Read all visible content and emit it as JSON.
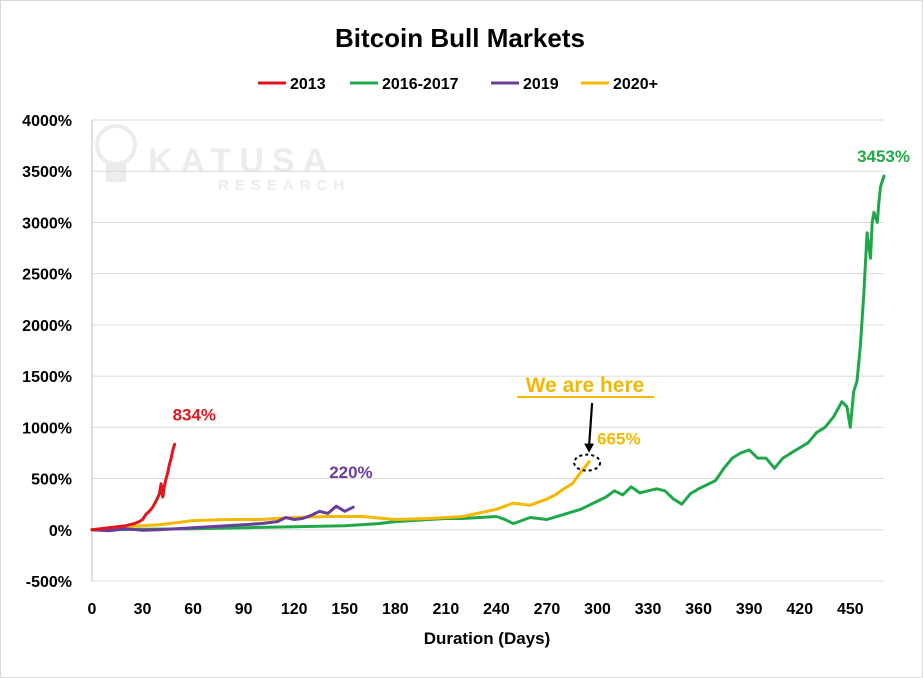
{
  "chart_data": {
    "type": "line",
    "title": "Bitcoin Bull Markets",
    "xlabel": "Duration  (Days)",
    "ylabel": "",
    "xlim": [
      0,
      470
    ],
    "ylim": [
      -500,
      4000
    ],
    "x_ticks": [
      0,
      30,
      60,
      90,
      120,
      150,
      180,
      210,
      240,
      270,
      300,
      330,
      360,
      390,
      420,
      450
    ],
    "x_tick_labels": [
      "0",
      "30",
      "60",
      "90",
      "120",
      "150",
      "180",
      "210",
      "240",
      "270",
      "300",
      "330",
      "360",
      "390",
      "420",
      "450"
    ],
    "y_ticks": [
      -500,
      0,
      500,
      1000,
      1500,
      2000,
      2500,
      3000,
      3500,
      4000
    ],
    "y_tick_labels": [
      "-500%",
      "0%",
      "500%",
      "1000%",
      "1500%",
      "2000%",
      "2500%",
      "3000%",
      "3500%",
      "4000%"
    ],
    "grid": "horizontal",
    "legend_position": "top-center",
    "legend": [
      "2013",
      "2016-2017",
      "2019",
      "2020+"
    ],
    "series": [
      {
        "name": "2013",
        "color": "#e0161b",
        "x": [
          0,
          5,
          10,
          15,
          20,
          25,
          28,
          30,
          32,
          34,
          36,
          38,
          40,
          41,
          42,
          43,
          44,
          45,
          46,
          47,
          48,
          49
        ],
        "y": [
          0,
          10,
          20,
          30,
          40,
          60,
          80,
          100,
          150,
          180,
          220,
          280,
          350,
          450,
          320,
          430,
          500,
          560,
          640,
          700,
          780,
          834
        ]
      },
      {
        "name": "2016-2017",
        "color": "#1fa84a",
        "x": [
          0,
          30,
          60,
          90,
          120,
          150,
          170,
          180,
          200,
          210,
          220,
          240,
          245,
          250,
          260,
          270,
          280,
          290,
          300,
          305,
          310,
          315,
          320,
          325,
          330,
          335,
          340,
          345,
          350,
          355,
          360,
          370,
          375,
          380,
          385,
          390,
          395,
          400,
          405,
          410,
          415,
          420,
          425,
          430,
          435,
          440,
          445,
          448,
          450,
          452,
          454,
          456,
          458,
          460,
          462,
          463,
          464,
          465,
          466,
          467,
          468,
          470
        ],
        "y": [
          0,
          5,
          10,
          20,
          30,
          40,
          60,
          80,
          100,
          110,
          110,
          130,
          100,
          60,
          120,
          100,
          150,
          200,
          280,
          320,
          380,
          340,
          420,
          360,
          380,
          400,
          380,
          300,
          250,
          350,
          400,
          480,
          600,
          700,
          750,
          780,
          700,
          700,
          600,
          700,
          750,
          800,
          850,
          950,
          1000,
          1100,
          1250,
          1200,
          1000,
          1350,
          1450,
          1800,
          2300,
          2900,
          2650,
          3000,
          3100,
          3050,
          3000,
          3200,
          3350,
          3453
        ]
      },
      {
        "name": "2019",
        "color": "#6a3d9a",
        "x": [
          0,
          10,
          20,
          30,
          40,
          50,
          60,
          70,
          80,
          90,
          100,
          110,
          115,
          120,
          125,
          130,
          135,
          140,
          145,
          150,
          155
        ],
        "y": [
          0,
          -10,
          10,
          -5,
          0,
          10,
          20,
          30,
          40,
          50,
          60,
          80,
          120,
          100,
          110,
          140,
          180,
          160,
          230,
          180,
          220
        ]
      },
      {
        "name": "2020+",
        "color": "#f5b800",
        "x": [
          0,
          20,
          40,
          60,
          80,
          100,
          120,
          140,
          160,
          180,
          200,
          220,
          240,
          250,
          260,
          270,
          275,
          280,
          285,
          290,
          295
        ],
        "y": [
          0,
          30,
          50,
          90,
          100,
          100,
          120,
          130,
          130,
          100,
          110,
          130,
          200,
          260,
          240,
          300,
          340,
          400,
          450,
          560,
          665
        ]
      }
    ],
    "annotations": [
      {
        "text": "834%",
        "color": "#e0161b",
        "x": 49,
        "y": 834
      },
      {
        "text": "220%",
        "color": "#6a3d9a",
        "x": 155,
        "y": 220
      },
      {
        "text": "665%",
        "color": "#f5b800",
        "x": 295,
        "y": 665
      },
      {
        "text": "3453%",
        "color": "#1fa84a",
        "x": 470,
        "y": 3453
      }
    ],
    "callout": {
      "text": "We are here",
      "color": "#f5b800",
      "target_x": 295,
      "target_y": 665
    }
  },
  "watermark": {
    "line1": "KATUSA",
    "line2": "RESEARCH"
  }
}
